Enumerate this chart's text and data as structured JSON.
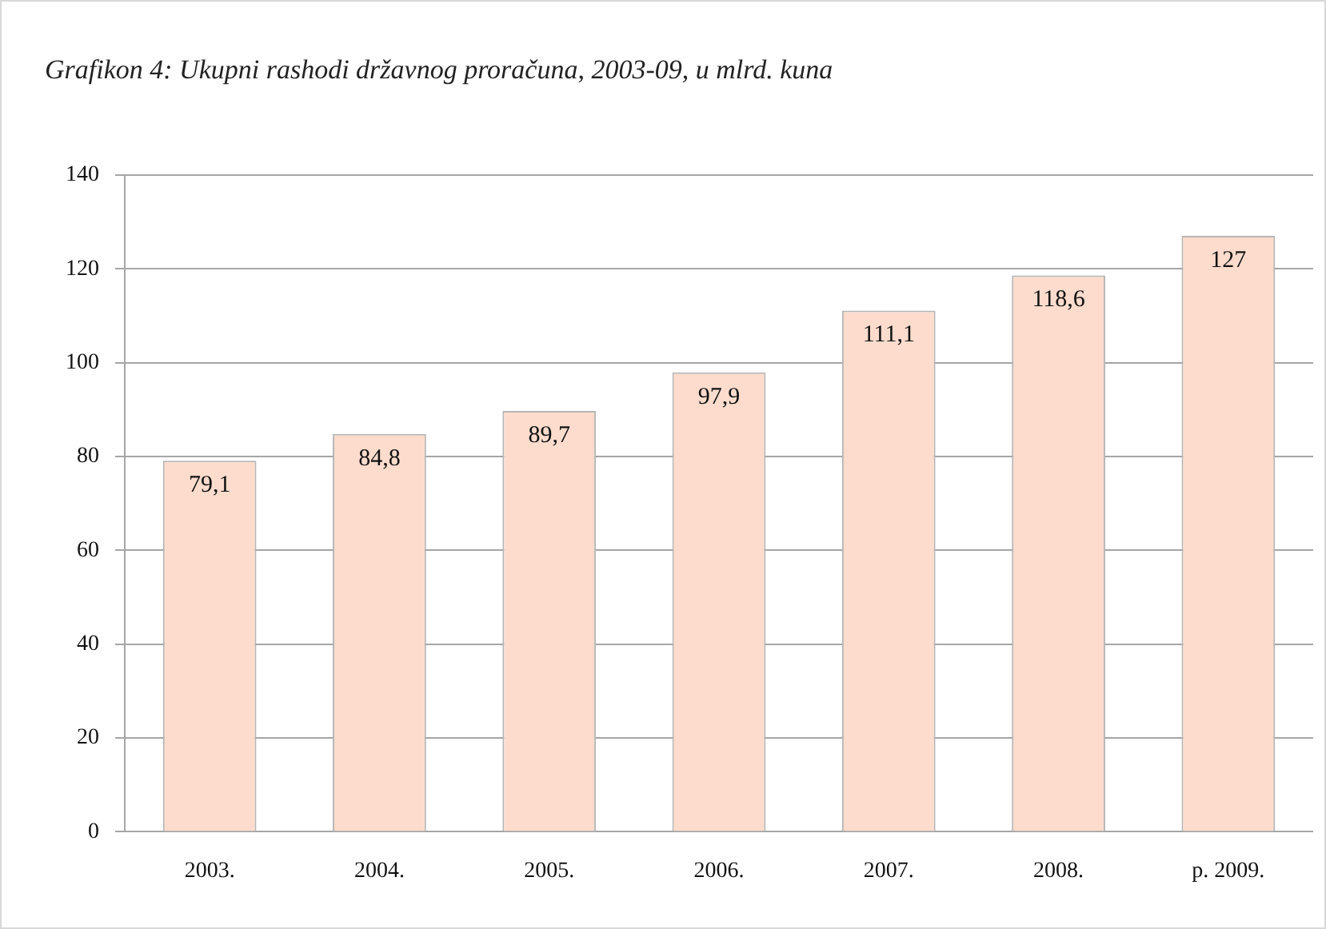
{
  "chart_data": {
    "type": "bar",
    "title": "Grafikon 4: Ukupni rashodi državnog proračuna, 2003-09, u mlrd. kuna",
    "categories": [
      "2003.",
      "2004.",
      "2005.",
      "2006.",
      "2007.",
      "2008.",
      "p. 2009."
    ],
    "values": [
      79.1,
      84.8,
      89.7,
      97.9,
      111.1,
      118.6,
      127
    ],
    "value_labels": [
      "79,1",
      "84,8",
      "89,7",
      "97,9",
      "111,1",
      "118,6",
      "127"
    ],
    "color": "#fddccd",
    "ylim": [
      0,
      140
    ],
    "yticks": [
      0,
      20,
      40,
      60,
      80,
      100,
      120,
      140
    ],
    "grid": "y",
    "legend": false
  }
}
